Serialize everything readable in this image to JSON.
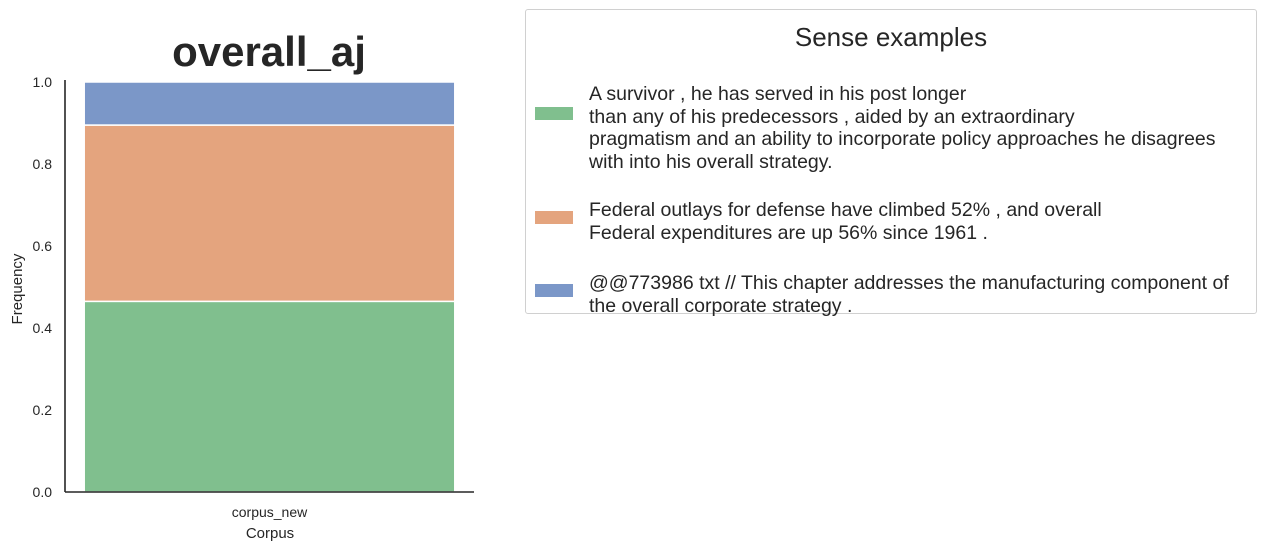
{
  "chart_data": {
    "type": "bar",
    "stacked": true,
    "title": "overall_aj",
    "xlabel": "Corpus",
    "ylabel": "Frequency",
    "categories": [
      "corpus_new"
    ],
    "ylim": [
      0,
      1.0
    ],
    "yticks": [
      "0.0",
      "0.2",
      "0.4",
      "0.6",
      "0.8",
      "1.0"
    ],
    "grid": false,
    "legend_placement": "right",
    "series": [
      {
        "name": "A survivor , he has served in his post longer\nthan any of his predecessors , aided by an extraordinary\npragmatism and an ability to incorporate policy approaches he disagrees\nwith into his overall strategy.",
        "values": [
          0.465
        ],
        "color": "#80bf8e"
      },
      {
        "name": "Federal outlays for defense have climbed 52% , and overall\nFederal expenditures are up 56% since 1961 .",
        "values": [
          0.43
        ],
        "color": "#e4a47e"
      },
      {
        "name": "@@773986 txt // This chapter addresses the manufacturing component of\nthe overall corporate strategy .",
        "values": [
          0.105
        ],
        "color": "#7b97c8"
      }
    ]
  },
  "legend": {
    "title": "Sense examples"
  }
}
